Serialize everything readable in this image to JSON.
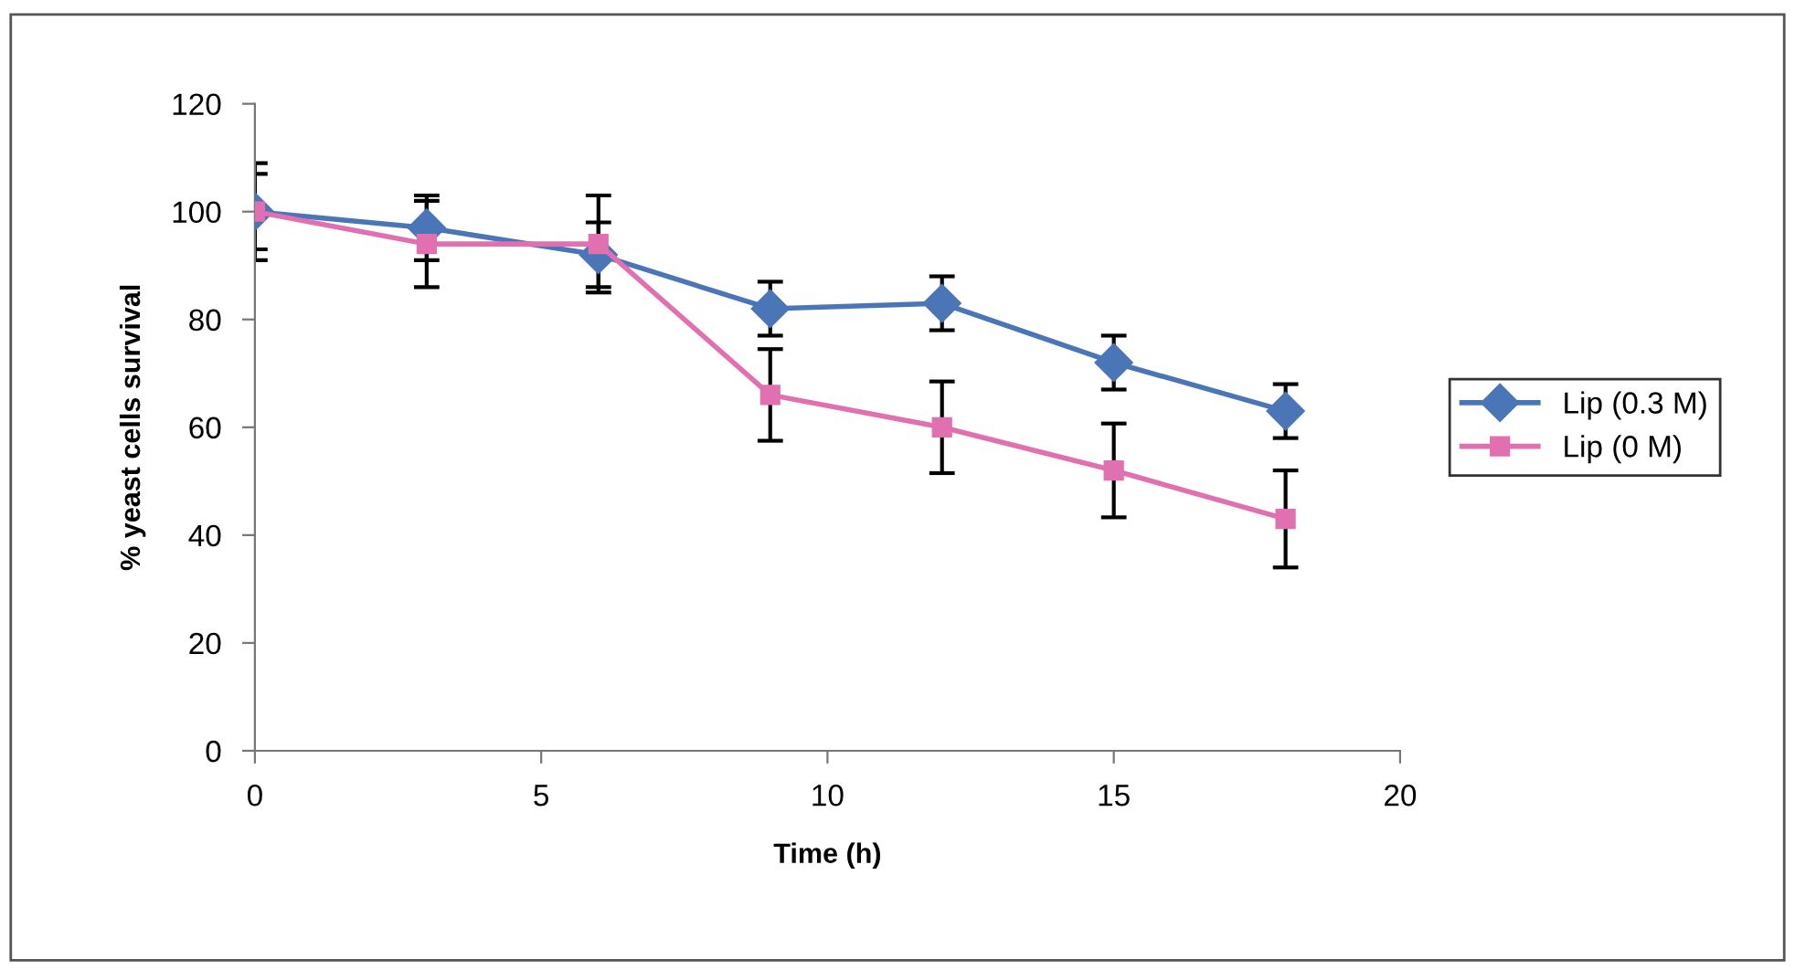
{
  "chart_data": {
    "type": "line",
    "xlabel": "Time (h)",
    "ylabel": "% yeast cells survival",
    "x": [
      0,
      3,
      6,
      9,
      12,
      15,
      18
    ],
    "series": [
      {
        "name": "Lip (0.3 M)",
        "color": "#4a76b8",
        "marker": "diamond",
        "values": [
          100,
          97,
          92,
          82,
          83,
          72,
          63
        ],
        "errors": [
          7,
          6,
          6,
          5,
          5,
          5,
          5
        ]
      },
      {
        "name": "Lip (0 M)",
        "color": "#e070b0",
        "marker": "square",
        "values": [
          100,
          94,
          94,
          66,
          60,
          52,
          43
        ],
        "errors": [
          9,
          8,
          9,
          8.5,
          8.5,
          8.7,
          9
        ]
      }
    ],
    "xlim": [
      0,
      20
    ],
    "xticks": [
      0,
      5,
      10,
      15,
      20
    ],
    "ylim": [
      0,
      120
    ],
    "yticks": [
      0,
      20,
      40,
      60,
      80,
      100,
      120
    ],
    "grid": false,
    "legend": "right",
    "line_style": "solid"
  }
}
